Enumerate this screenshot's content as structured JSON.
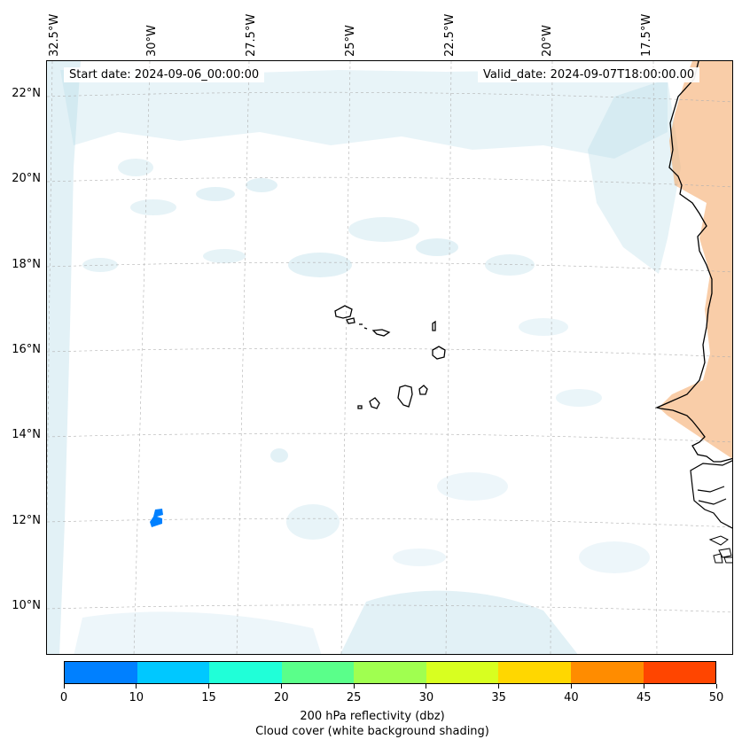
{
  "map": {
    "start_date": "Start date: 2024-09-06_00:00:00",
    "valid_date": "Valid_date: 2024-09-07T18:00:00.00",
    "lon_labels": [
      "32.5°W",
      "30°W",
      "27.5°W",
      "25°W",
      "22.5°W",
      "20°W",
      "17.5°W"
    ],
    "lat_labels": [
      "22°N",
      "20°N",
      "18°N",
      "16°N",
      "14°N",
      "12°N",
      "10°N"
    ],
    "colorbar_title": "200 hPa reflectivity (dbz)",
    "colorbar_subtitle": "Cloud cover (white background shading)",
    "colorbar_ticks": [
      "0",
      "10",
      "15",
      "20",
      "25",
      "30",
      "35",
      "40",
      "45",
      "50"
    ],
    "colorbar_colors": [
      "#0080ff",
      "#00c8ff",
      "#20ffd8",
      "#5aff8a",
      "#a0ff50",
      "#d8ff20",
      "#ffd700",
      "#ff8c00",
      "#ff4500"
    ],
    "cloud_color": "#add8e6",
    "land_heat_color": "#f4a460",
    "reflectivity_echo_color": "#0080ff"
  }
}
